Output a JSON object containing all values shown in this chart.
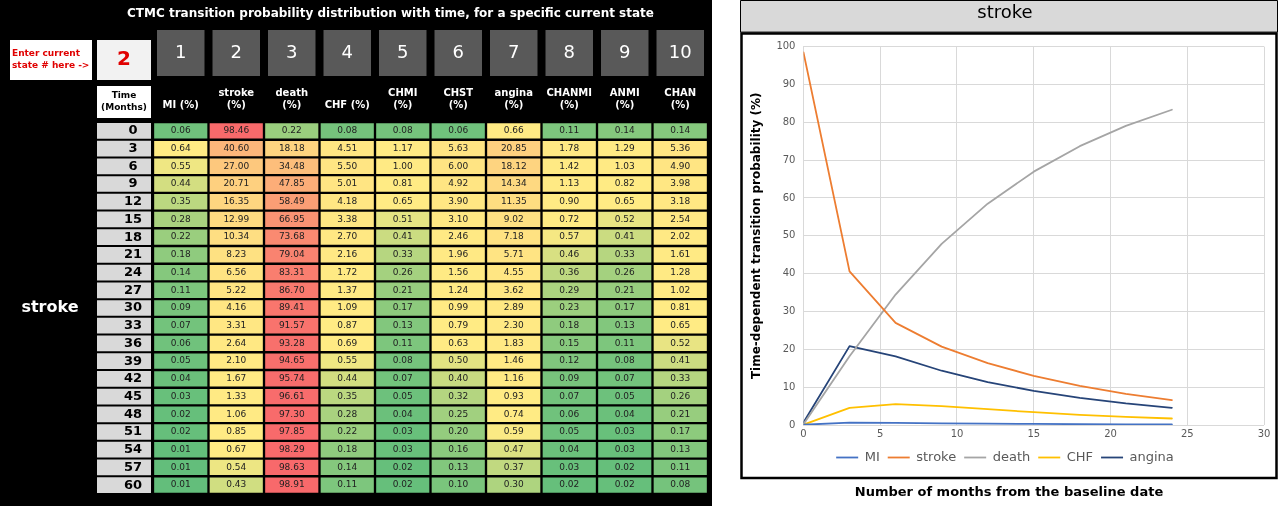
{
  "chart_data": [
    {
      "type": "heatmap",
      "title": "CTMC transition probability distribution with time, for a specific current state",
      "ylabel": "Time (Months)",
      "annotations": [
        "Enter current state # here ->",
        "2",
        "stroke",
        "1",
        "2",
        "3",
        "4",
        "5",
        "6",
        "7",
        "8",
        "9",
        "10"
      ],
      "categories": [
        "MI (%)",
        "stroke (%)",
        "death (%)",
        "CHF (%)",
        "CHMI (%)",
        "CHST (%)",
        "angina (%)",
        "CHANMI (%)",
        "ANMI (%)",
        "CHAN (%)"
      ],
      "y_categories": [
        "0",
        "3",
        "6",
        "9",
        "12",
        "15",
        "18",
        "21",
        "24",
        "27",
        "30",
        "33",
        "36",
        "39",
        "42",
        "45",
        "48",
        "51",
        "54",
        "57",
        "60"
      ],
      "cells": [
        [
          0.06,
          98.46,
          0.22,
          0.08,
          0.08,
          0.06,
          0.66,
          0.11,
          0.14,
          0.14
        ],
        [
          0.64,
          40.6,
          18.18,
          4.51,
          1.17,
          5.63,
          20.85,
          1.78,
          1.29,
          5.36
        ],
        [
          0.55,
          27,
          34.48,
          5.5,
          1,
          6,
          18.12,
          1.42,
          1.03,
          4.9
        ],
        [
          0.44,
          20.71,
          47.85,
          5.01,
          0.81,
          4.92,
          14.34,
          1.13,
          0.82,
          3.98
        ],
        [
          0.35,
          16.35,
          58.49,
          4.18,
          0.65,
          3.9,
          11.35,
          0.9,
          0.65,
          3.18
        ],
        [
          0.28,
          12.99,
          66.95,
          3.38,
          0.51,
          3.1,
          9.02,
          0.72,
          0.52,
          2.54
        ],
        [
          0.22,
          10.34,
          73.68,
          2.7,
          0.41,
          2.46,
          7.18,
          0.57,
          0.41,
          2.02
        ],
        [
          0.18,
          8.23,
          79.04,
          2.16,
          0.33,
          1.96,
          5.71,
          0.46,
          0.33,
          1.61
        ],
        [
          0.14,
          6.56,
          83.31,
          1.72,
          0.26,
          1.56,
          4.55,
          0.36,
          0.26,
          1.28
        ],
        [
          0.11,
          5.22,
          86.7,
          1.37,
          0.21,
          1.24,
          3.62,
          0.29,
          0.21,
          1.02
        ],
        [
          0.09,
          4.16,
          89.41,
          1.09,
          0.17,
          0.99,
          2.89,
          0.23,
          0.17,
          0.81
        ],
        [
          0.07,
          3.31,
          91.57,
          0.87,
          0.13,
          0.79,
          2.3,
          0.18,
          0.13,
          0.65
        ],
        [
          0.06,
          2.64,
          93.28,
          0.69,
          0.11,
          0.63,
          1.83,
          0.15,
          0.11,
          0.52
        ],
        [
          0.05,
          2.1,
          94.65,
          0.55,
          0.08,
          0.5,
          1.46,
          0.12,
          0.08,
          0.41
        ],
        [
          0.04,
          1.67,
          95.74,
          0.44,
          0.07,
          0.4,
          1.16,
          0.09,
          0.07,
          0.33
        ],
        [
          0.03,
          1.33,
          96.61,
          0.35,
          0.05,
          0.32,
          0.93,
          0.07,
          0.05,
          0.26
        ],
        [
          0.02,
          1.06,
          97.3,
          0.28,
          0.04,
          0.25,
          0.74,
          0.06,
          0.04,
          0.21
        ],
        [
          0.02,
          0.85,
          97.85,
          0.22,
          0.03,
          0.2,
          0.59,
          0.05,
          0.03,
          0.17
        ],
        [
          0.01,
          0.67,
          98.29,
          0.18,
          0.03,
          0.16,
          0.47,
          0.04,
          0.03,
          0.13
        ],
        [
          0.01,
          0.54,
          98.63,
          0.14,
          0.02,
          0.13,
          0.37,
          0.03,
          0.02,
          0.11
        ],
        [
          0.01,
          0.43,
          98.91,
          0.11,
          0.02,
          0.1,
          0.3,
          0.02,
          0.02,
          0.08
        ]
      ],
      "cell_labels": [
        [
          "0.06",
          "98.46",
          "0.22",
          "0.08",
          "0.08",
          "0.06",
          "0.66",
          "0.11",
          "0.14",
          "0.14"
        ],
        [
          "0.64",
          "40.60",
          "18.18",
          "4.51",
          "1.17",
          "5.63",
          "20.85",
          "1.78",
          "1.29",
          "5.36"
        ],
        [
          "0.55",
          "27.00",
          "34.48",
          "5.50",
          "1.00",
          "6.00",
          "18.12",
          "1.42",
          "1.03",
          "4.90"
        ],
        [
          "0.44",
          "20.71",
          "47.85",
          "5.01",
          "0.81",
          "4.92",
          "14.34",
          "1.13",
          "0.82",
          "3.98"
        ],
        [
          "0.35",
          "16.35",
          "58.49",
          "4.18",
          "0.65",
          "3.90",
          "11.35",
          "0.90",
          "0.65",
          "3.18"
        ],
        [
          "0.28",
          "12.99",
          "66.95",
          "3.38",
          "0.51",
          "3.10",
          "9.02",
          "0.72",
          "0.52",
          "2.54"
        ],
        [
          "0.22",
          "10.34",
          "73.68",
          "2.70",
          "0.41",
          "2.46",
          "7.18",
          "0.57",
          "0.41",
          "2.02"
        ],
        [
          "0.18",
          "8.23",
          "79.04",
          "2.16",
          "0.33",
          "1.96",
          "5.71",
          "0.46",
          "0.33",
          "1.61"
        ],
        [
          "0.14",
          "6.56",
          "83.31",
          "1.72",
          "0.26",
          "1.56",
          "4.55",
          "0.36",
          "0.26",
          "1.28"
        ],
        [
          "0.11",
          "5.22",
          "86.70",
          "1.37",
          "0.21",
          "1.24",
          "3.62",
          "0.29",
          "0.21",
          "1.02"
        ],
        [
          "0.09",
          "4.16",
          "89.41",
          "1.09",
          "0.17",
          "0.99",
          "2.89",
          "0.23",
          "0.17",
          "0.81"
        ],
        [
          "0.07",
          "3.31",
          "91.57",
          "0.87",
          "0.13",
          "0.79",
          "2.30",
          "0.18",
          "0.13",
          "0.65"
        ],
        [
          "0.06",
          "2.64",
          "93.28",
          "0.69",
          "0.11",
          "0.63",
          "1.83",
          "0.15",
          "0.11",
          "0.52"
        ],
        [
          "0.05",
          "2.10",
          "94.65",
          "0.55",
          "0.08",
          "0.50",
          "1.46",
          "0.12",
          "0.08",
          "0.41"
        ],
        [
          "0.04",
          "1.67",
          "95.74",
          "0.44",
          "0.07",
          "0.40",
          "1.16",
          "0.09",
          "0.07",
          "0.33"
        ],
        [
          "0.03",
          "1.33",
          "96.61",
          "0.35",
          "0.05",
          "0.32",
          "0.93",
          "0.07",
          "0.05",
          "0.26"
        ],
        [
          "0.02",
          "1.06",
          "97.30",
          "0.28",
          "0.04",
          "0.25",
          "0.74",
          "0.06",
          "0.04",
          "0.21"
        ],
        [
          "0.02",
          "0.85",
          "97.85",
          "0.22",
          "0.03",
          "0.20",
          "0.59",
          "0.05",
          "0.03",
          "0.17"
        ],
        [
          "0.01",
          "0.67",
          "98.29",
          "0.18",
          "0.03",
          "0.16",
          "0.47",
          "0.04",
          "0.03",
          "0.13"
        ],
        [
          "0.01",
          "0.54",
          "98.63",
          "0.14",
          "0.02",
          "0.13",
          "0.37",
          "0.03",
          "0.02",
          "0.11"
        ],
        [
          "0.01",
          "0.43",
          "98.91",
          "0.11",
          "0.02",
          "0.10",
          "0.30",
          "0.02",
          "0.02",
          "0.08"
        ]
      ]
    },
    {
      "type": "line",
      "title": "stroke",
      "xlabel": "Number of months from the baseline date",
      "ylabel": "Time-dependent transition probability (%)",
      "x": [
        0,
        3,
        6,
        9,
        12,
        15,
        18,
        21,
        24
      ],
      "series": [
        {
          "name": "MI",
          "color": "#4472c4",
          "values": [
            0.06,
            0.64,
            0.55,
            0.44,
            0.35,
            0.28,
            0.22,
            0.18,
            0.14
          ]
        },
        {
          "name": "stroke",
          "color": "#ed7d31",
          "values": [
            98.46,
            40.6,
            27,
            20.71,
            16.35,
            12.99,
            10.34,
            8.23,
            6.56
          ]
        },
        {
          "name": "death",
          "color": "#a5a5a5",
          "values": [
            0.22,
            18.18,
            34.48,
            47.85,
            58.49,
            66.95,
            73.68,
            79.04,
            83.31
          ]
        },
        {
          "name": "CHF",
          "color": "#ffc000",
          "values": [
            0.08,
            4.51,
            5.5,
            5.01,
            4.18,
            3.38,
            2.7,
            2.16,
            1.72
          ]
        },
        {
          "name": "angina",
          "color": "#264478",
          "values": [
            0.66,
            20.85,
            18.12,
            14.34,
            11.35,
            9.02,
            7.18,
            5.71,
            4.55
          ]
        }
      ],
      "xlim": [
        0,
        30
      ],
      "xticks": [
        0,
        5,
        10,
        15,
        20,
        25,
        30
      ],
      "ylim": [
        0,
        100
      ],
      "yticks": [
        0,
        10,
        20,
        30,
        40,
        50,
        60,
        70,
        80,
        90,
        100
      ],
      "grid": true,
      "legend": "bottom",
      "marker": "none",
      "line_style": "solid"
    }
  ]
}
